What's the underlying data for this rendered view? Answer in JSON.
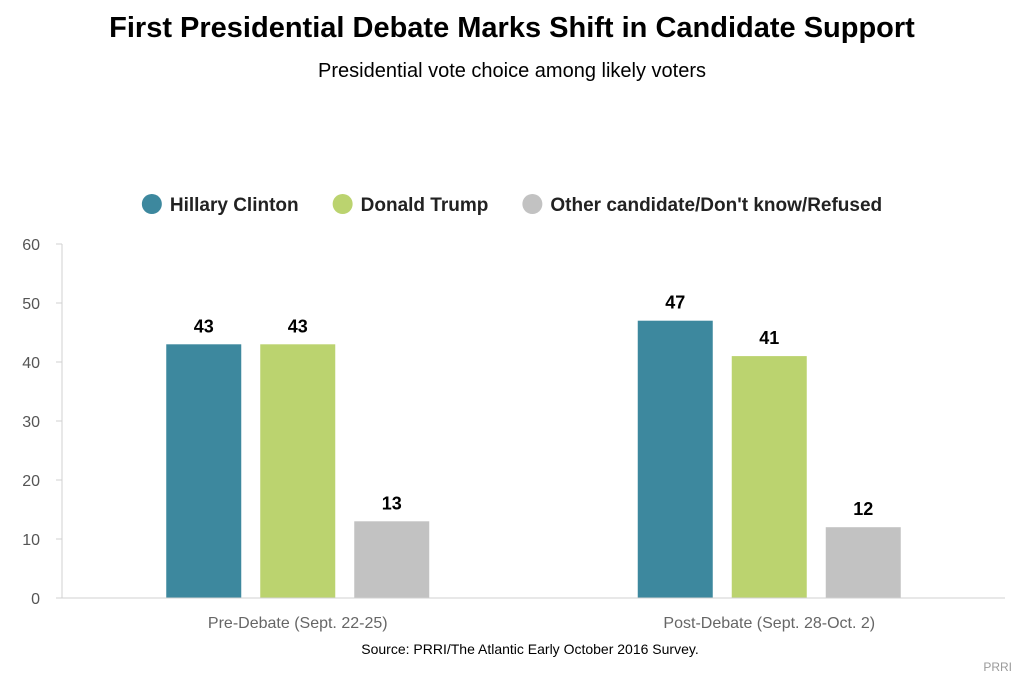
{
  "chart_data": {
    "type": "bar",
    "title": "First Presidential Debate Marks Shift in Candidate Support",
    "subtitle": "Presidential vote choice among likely voters",
    "categories": [
      "Pre-Debate (Sept. 22-25)",
      "Post-Debate (Sept. 28-Oct. 2)"
    ],
    "series": [
      {
        "name": "Hillary Clinton",
        "color": "#3d889e",
        "values": [
          43,
          47
        ]
      },
      {
        "name": "Donald Trump",
        "color": "#bbd36f",
        "values": [
          43,
          41
        ]
      },
      {
        "name": "Other candidate/Don't know/Refused",
        "color": "#c2c2c2",
        "values": [
          13,
          12
        ]
      }
    ],
    "ylim": [
      0,
      60
    ],
    "yticks": [
      0,
      10,
      20,
      30,
      40,
      50,
      60
    ],
    "grid": false,
    "legend": "top",
    "data_labels": true
  },
  "source": "Source: PRRI/The Atlantic Early October 2016 Survey.",
  "brand": "PRRI"
}
